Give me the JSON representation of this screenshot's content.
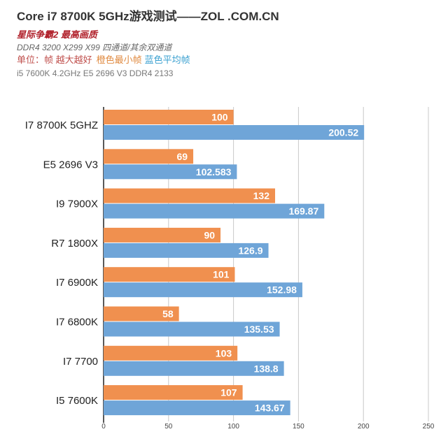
{
  "header": {
    "title": "Core i7 8700K 5GHz游戏测试——ZOL .COM.CN",
    "subtitle": "星际争霸2 最高画质",
    "memory_note": "DDR4 3200  X299 X99 四通道/其余双通道",
    "unit_label": "单位：帧 越大越好",
    "orange_legend": "橙色最小帧",
    "blue_legend": "蓝色平均帧",
    "config_note": "i5 7600K 4.2GHz E5 2696 V3 DDR4 2133"
  },
  "chart_data": {
    "type": "bar",
    "orientation": "horizontal",
    "categories": [
      "I7 8700K 5GHZ",
      "E5 2696 V3",
      "I9 7900X",
      "R7 1800X",
      "I7 6900K",
      "I7 6800K",
      "I7 7700",
      "I5 7600K"
    ],
    "series": [
      {
        "name": "橙色最小帧",
        "color": "#f0904f",
        "values": [
          100,
          69,
          132,
          90,
          101,
          58,
          103,
          107
        ],
        "labels": [
          "100",
          "69",
          "132",
          "90",
          "101",
          "58",
          "103",
          "107"
        ]
      },
      {
        "name": "蓝色平均帧",
        "color": "#6fa5d8",
        "values": [
          200.52,
          102.583,
          169.87,
          126.9,
          152.98,
          135.53,
          138.8,
          143.67
        ],
        "labels": [
          "200.52",
          "102.583",
          "169.87",
          "126.9",
          "152.98",
          "135.53",
          "138.8",
          "143.67"
        ]
      }
    ],
    "xlim": [
      0,
      250
    ],
    "xticks": [
      "0",
      "50",
      "100",
      "150",
      "200",
      "250"
    ],
    "grid": true,
    "legend": "none"
  }
}
